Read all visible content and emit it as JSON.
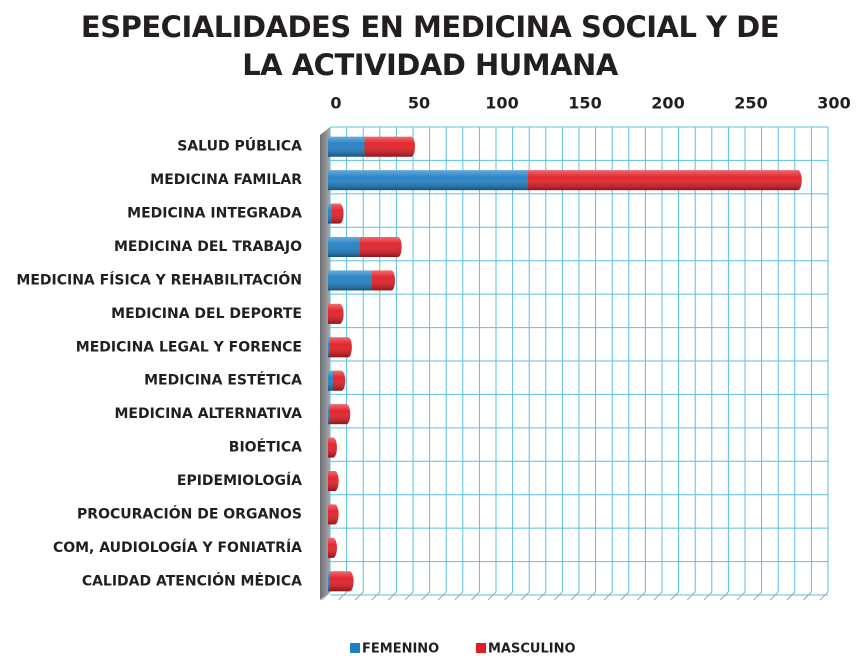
{
  "chart_data": {
    "type": "stacked_barh",
    "title": "ESPECIALIDADES EN MEDICINA SOCIAL Y DE LA ACTIVIDAD HUMANA",
    "categories": [
      "SALUD PÚBLICA",
      "MEDICINA FAMILAR",
      "MEDICINA INTEGRADA",
      "MEDICINA DEL TRABAJO",
      "MEDICINA FÍSICA Y REHABILITACIÓN",
      "MEDICINA DEL DEPORTE",
      "MEDICINA LEGAL Y FORENCE",
      "MEDICINA ESTÉTICA",
      "MEDICINA ALTERNATIVA",
      "BIOÉTICA",
      "EPIDEMIOLOGÍA",
      "PROCURACIÓN DE ORGANOS",
      "COM, AUDIOLOGÍA Y FONIATRÍA",
      "CALIDAD ATENCIÓN MÉDICA"
    ],
    "series": [
      {
        "name": "FEMENINO",
        "color": "#1f7fc4",
        "values": [
          22,
          120,
          2,
          19,
          26,
          0,
          1,
          3,
          1,
          0,
          0,
          0,
          0,
          1
        ]
      },
      {
        "name": "MASCULINO",
        "color": "#e21c24",
        "values": [
          28,
          163,
          5,
          23,
          12,
          7,
          11,
          5,
          10,
          3,
          4,
          4,
          3,
          12
        ]
      }
    ],
    "xlim": [
      0,
      300
    ],
    "xticks": [
      0,
      50,
      100,
      150,
      200,
      250,
      300
    ],
    "xgrid": [
      0,
      10,
      20,
      30,
      40,
      50,
      60,
      70,
      80,
      90,
      100,
      110,
      120,
      130,
      140,
      150,
      160,
      170,
      180,
      190,
      200,
      210,
      220,
      230,
      240,
      250,
      260,
      270,
      280,
      290,
      300
    ],
    "grid": true,
    "legend": "bottom"
  }
}
